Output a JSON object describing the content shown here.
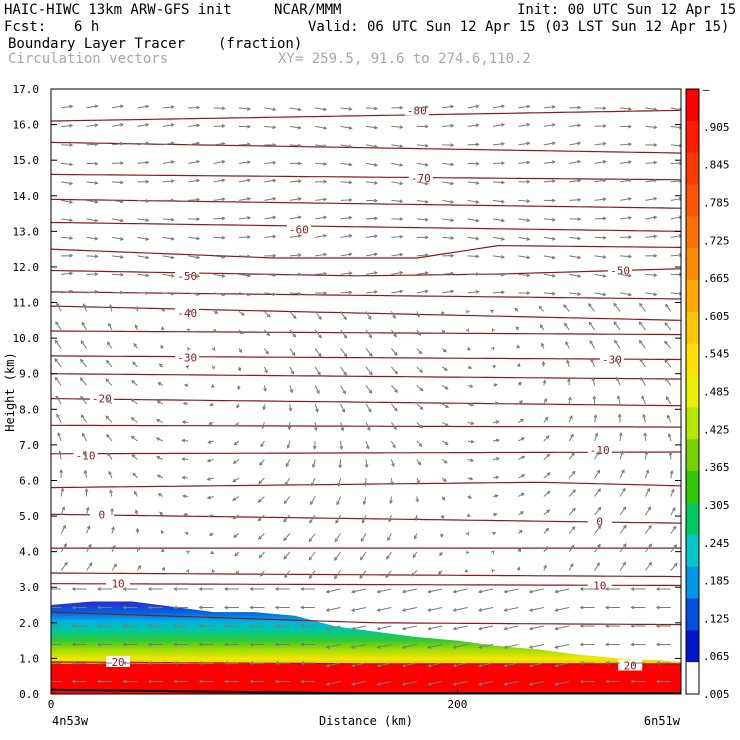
{
  "header": {
    "model": "HAIC-HIWC 13km ARW-GFS init",
    "org": "NCAR/MMM",
    "init": "Init: 00 UTC Sun 12 Apr 15",
    "fcst_label": "Fcst:",
    "fcst_value": "6 h",
    "valid": "Valid: 06 UTC Sun 12 Apr 15 (03 LST Sun 12 Apr 15)",
    "field": "Boundary Layer Tracer",
    "field_units": "(fraction)",
    "vectors": "Circulation vectors",
    "xsec": "XY= 259.5, 91.6 to 274.6,110.2"
  },
  "chart_data": {
    "type": "heatmap",
    "title": "Boundary Layer Tracer",
    "ylabel": "Height (km)",
    "xlabel": "Distance (km)",
    "ylim": [
      0,
      17
    ],
    "xlim": [
      0,
      310
    ],
    "yticks": [
      "0.0",
      "1.0",
      "2.0",
      "3.0",
      "4.0",
      "5.0",
      "6.0",
      "7.0",
      "8.0",
      "9.0",
      "10.0",
      "11.0",
      "12.0",
      "13.0",
      "14.0",
      "15.0",
      "16.0",
      "17.0"
    ],
    "xticks": [
      {
        "value": 0,
        "label": "0"
      },
      {
        "value": 200,
        "label": "200"
      }
    ],
    "x_end_labels": {
      "left": "4n53w",
      "right": "6n51w"
    },
    "colorbar": {
      "labels": [
        "–",
        ".905",
        ".845",
        ".785",
        ".725",
        ".665",
        ".605",
        ".545",
        ".485",
        ".425",
        ".365",
        ".305",
        ".245",
        ".185",
        ".125",
        ".065",
        ".005"
      ],
      "colors": [
        "#ff0000",
        "#ff1c00",
        "#ff3800",
        "#ff5400",
        "#ff7000",
        "#ff8c00",
        "#ffa800",
        "#ffc400",
        "#ffe000",
        "#e6f000",
        "#b4e600",
        "#78d200",
        "#30c800",
        "#00c864",
        "#00c8c8",
        "#0096e6",
        "#0050dc",
        "#0014c8",
        "#ffffff"
      ]
    },
    "tracer_top_km": [
      {
        "x": 0,
        "top": 2.5
      },
      {
        "x": 20,
        "top": 2.6
      },
      {
        "x": 40,
        "top": 2.6
      },
      {
        "x": 60,
        "top": 2.45
      },
      {
        "x": 80,
        "top": 2.3
      },
      {
        "x": 100,
        "top": 2.3
      },
      {
        "x": 120,
        "top": 2.2
      },
      {
        "x": 140,
        "top": 1.9
      },
      {
        "x": 160,
        "top": 1.75
      },
      {
        "x": 180,
        "top": 1.6
      },
      {
        "x": 200,
        "top": 1.5
      },
      {
        "x": 220,
        "top": 1.35
      },
      {
        "x": 240,
        "top": 1.25
      },
      {
        "x": 260,
        "top": 1.1
      },
      {
        "x": 280,
        "top": 1.0
      },
      {
        "x": 300,
        "top": 0.95
      },
      {
        "x": 310,
        "top": 0.9
      }
    ],
    "temperature_contours": [
      {
        "label": "-80",
        "profile": [
          [
            0,
            16.1
          ],
          [
            310,
            16.4
          ]
        ],
        "labels_at": [
          {
            "x": 180,
            "y": 16.4
          }
        ]
      },
      {
        "label": "",
        "profile": [
          [
            0,
            15.5
          ],
          [
            310,
            15.2
          ]
        ],
        "labels_at": []
      },
      {
        "label": "-70",
        "profile": [
          [
            0,
            14.6
          ],
          [
            310,
            14.45
          ]
        ],
        "labels_at": [
          {
            "x": 182,
            "y": 14.5
          }
        ]
      },
      {
        "label": "",
        "profile": [
          [
            0,
            13.9
          ],
          [
            310,
            13.65
          ]
        ],
        "labels_at": []
      },
      {
        "label": "-60",
        "profile": [
          [
            0,
            13.25
          ],
          [
            310,
            13.0
          ]
        ],
        "labels_at": [
          {
            "x": 122,
            "y": 13.05
          }
        ]
      },
      {
        "label": "",
        "profile": [
          [
            0,
            12.5
          ],
          [
            110,
            12.25
          ],
          [
            180,
            12.25
          ],
          [
            220,
            12.6
          ],
          [
            310,
            12.55
          ]
        ],
        "labels_at": []
      },
      {
        "label": "-50",
        "profile": [
          [
            0,
            11.9
          ],
          [
            150,
            11.75
          ],
          [
            220,
            11.8
          ],
          [
            310,
            11.95
          ]
        ],
        "labels_at": [
          {
            "x": 67,
            "y": 11.75
          },
          {
            "x": 280,
            "y": 11.9
          }
        ]
      },
      {
        "label": "",
        "profile": [
          [
            0,
            11.3
          ],
          [
            310,
            11.1
          ]
        ],
        "labels_at": []
      },
      {
        "label": "-40",
        "profile": [
          [
            0,
            10.9
          ],
          [
            310,
            10.5
          ]
        ],
        "labels_at": [
          {
            "x": 67,
            "y": 10.7
          }
        ]
      },
      {
        "label": "",
        "profile": [
          [
            0,
            10.2
          ],
          [
            310,
            10.1
          ]
        ],
        "labels_at": []
      },
      {
        "label": "-30",
        "profile": [
          [
            0,
            9.5
          ],
          [
            310,
            9.4
          ]
        ],
        "labels_at": [
          {
            "x": 67,
            "y": 9.45
          },
          {
            "x": 276,
            "y": 9.4
          }
        ]
      },
      {
        "label": "",
        "profile": [
          [
            0,
            9.0
          ],
          [
            310,
            8.85
          ]
        ],
        "labels_at": []
      },
      {
        "label": "-20",
        "profile": [
          [
            0,
            8.3
          ],
          [
            310,
            8.1
          ]
        ],
        "labels_at": [
          {
            "x": 25,
            "y": 8.3
          }
        ]
      },
      {
        "label": "",
        "profile": [
          [
            0,
            7.55
          ],
          [
            310,
            7.5
          ]
        ],
        "labels_at": []
      },
      {
        "label": "-10",
        "profile": [
          [
            0,
            6.75
          ],
          [
            310,
            6.8
          ]
        ],
        "labels_at": [
          {
            "x": 17,
            "y": 6.7
          },
          {
            "x": 270,
            "y": 6.85
          }
        ]
      },
      {
        "label": "",
        "profile": [
          [
            0,
            5.8
          ],
          [
            240,
            5.95
          ],
          [
            310,
            5.85
          ]
        ],
        "labels_at": []
      },
      {
        "label": "0",
        "profile": [
          [
            0,
            5.05
          ],
          [
            310,
            4.8
          ]
        ],
        "labels_at": [
          {
            "x": 25,
            "y": 5.05
          },
          {
            "x": 270,
            "y": 4.85
          }
        ]
      },
      {
        "label": "",
        "profile": [
          [
            0,
            4.1
          ],
          [
            310,
            4.1
          ]
        ],
        "labels_at": []
      },
      {
        "label": "",
        "profile": [
          [
            0,
            3.4
          ],
          [
            310,
            3.3
          ]
        ],
        "labels_at": []
      },
      {
        "label": "10",
        "profile": [
          [
            0,
            3.1
          ],
          [
            310,
            3.05
          ]
        ],
        "labels_at": [
          {
            "x": 33,
            "y": 3.1
          },
          {
            "x": 270,
            "y": 3.05
          }
        ]
      },
      {
        "label": "",
        "profile": [
          [
            0,
            2.3
          ],
          [
            160,
            2.0
          ],
          [
            310,
            1.95
          ]
        ],
        "labels_at": []
      },
      {
        "label": "20",
        "profile": [
          [
            0,
            0.9
          ],
          [
            150,
            0.85
          ],
          [
            310,
            0.85
          ]
        ],
        "labels_at": [
          {
            "x": 33,
            "y": 0.9
          },
          {
            "x": 285,
            "y": 0.8
          }
        ]
      }
    ],
    "grid": false,
    "legend": "colorbar-right"
  }
}
